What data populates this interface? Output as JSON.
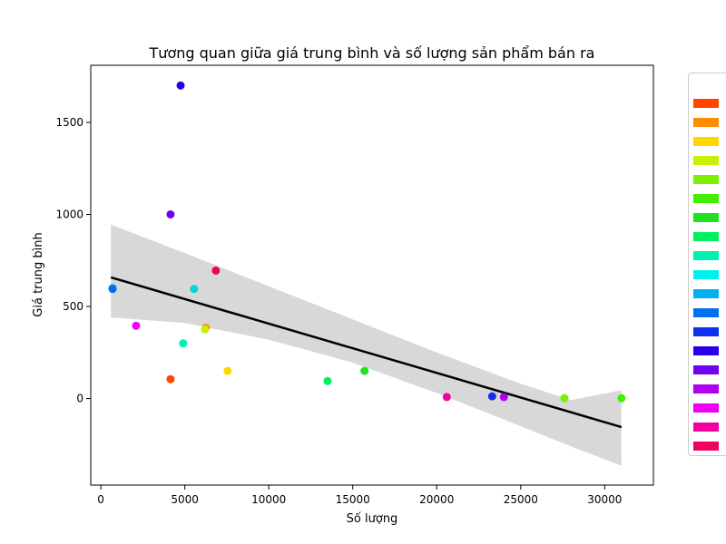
{
  "chart_data": {
    "type": "scatter",
    "title": "Tương quan giữa giá trung bình và số lượng sản phẩm bán ra",
    "xlabel": "Số lượng",
    "ylabel": "Giá trung bình",
    "xlim": [
      -600,
      32900
    ],
    "ylim": [
      -470,
      1810
    ],
    "xticks": [
      0,
      5000,
      10000,
      15000,
      20000,
      25000,
      30000
    ],
    "yticks": [
      0,
      500,
      1000,
      1500
    ],
    "grid": false,
    "legend_position": "right-outside",
    "points": [
      {
        "x": 4150,
        "y": 105,
        "color": "#ff4500"
      },
      {
        "x": 6250,
        "y": 385,
        "color": "#ff8c00"
      },
      {
        "x": 7550,
        "y": 150,
        "color": "#ffd700"
      },
      {
        "x": 6200,
        "y": 375,
        "color": "#c8f000"
      },
      {
        "x": 27600,
        "y": 2,
        "color": "#7cf000"
      },
      {
        "x": 31000,
        "y": 2,
        "color": "#40f000"
      },
      {
        "x": 15700,
        "y": 150,
        "color": "#20e020"
      },
      {
        "x": 13500,
        "y": 95,
        "color": "#00f060"
      },
      {
        "x": 4900,
        "y": 300,
        "color": "#00f0b0"
      },
      {
        "x": 5550,
        "y": 595,
        "color": "#00d8d8"
      },
      {
        "x": 700,
        "y": 600,
        "color": "#00b0f0"
      },
      {
        "x": 700,
        "y": 595,
        "color": "#0070f0"
      },
      {
        "x": 23300,
        "y": 12,
        "color": "#1030f0"
      },
      {
        "x": 4750,
        "y": 1700,
        "color": "#2800e8"
      },
      {
        "x": 4150,
        "y": 1000,
        "color": "#7000f0"
      },
      {
        "x": 24000,
        "y": 8,
        "color": "#b000f0"
      },
      {
        "x": 2100,
        "y": 395,
        "color": "#f000f0"
      },
      {
        "x": 20600,
        "y": 8,
        "color": "#f000a0"
      },
      {
        "x": 6850,
        "y": 695,
        "color": "#f00060"
      }
    ],
    "regression": {
      "line": [
        [
          600,
          658
        ],
        [
          31000,
          -155
        ]
      ],
      "band_upper": [
        [
          600,
          945
        ],
        [
          5000,
          790
        ],
        [
          10000,
          610
        ],
        [
          15000,
          430
        ],
        [
          20000,
          250
        ],
        [
          25000,
          80
        ],
        [
          28000,
          -8
        ],
        [
          31000,
          45
        ]
      ],
      "band_lower": [
        [
          600,
          440
        ],
        [
          5000,
          410
        ],
        [
          10000,
          320
        ],
        [
          15000,
          195
        ],
        [
          20000,
          30
        ],
        [
          25000,
          -150
        ],
        [
          28000,
          -260
        ],
        [
          31000,
          -365
        ]
      ],
      "line_color": "#000000",
      "band_color": "#d8d8d8"
    },
    "legend": {
      "colors": [
        "#ff4500",
        "#ff8c00",
        "#ffd700",
        "#c8f000",
        "#7cf000",
        "#40f000",
        "#20e020",
        "#00f060",
        "#00f0b0",
        "#00f0f0",
        "#00b0f0",
        "#0070f0",
        "#1030f0",
        "#2800e8",
        "#7000f0",
        "#b000f0",
        "#f000f0",
        "#f000a0",
        "#f00060"
      ]
    }
  }
}
